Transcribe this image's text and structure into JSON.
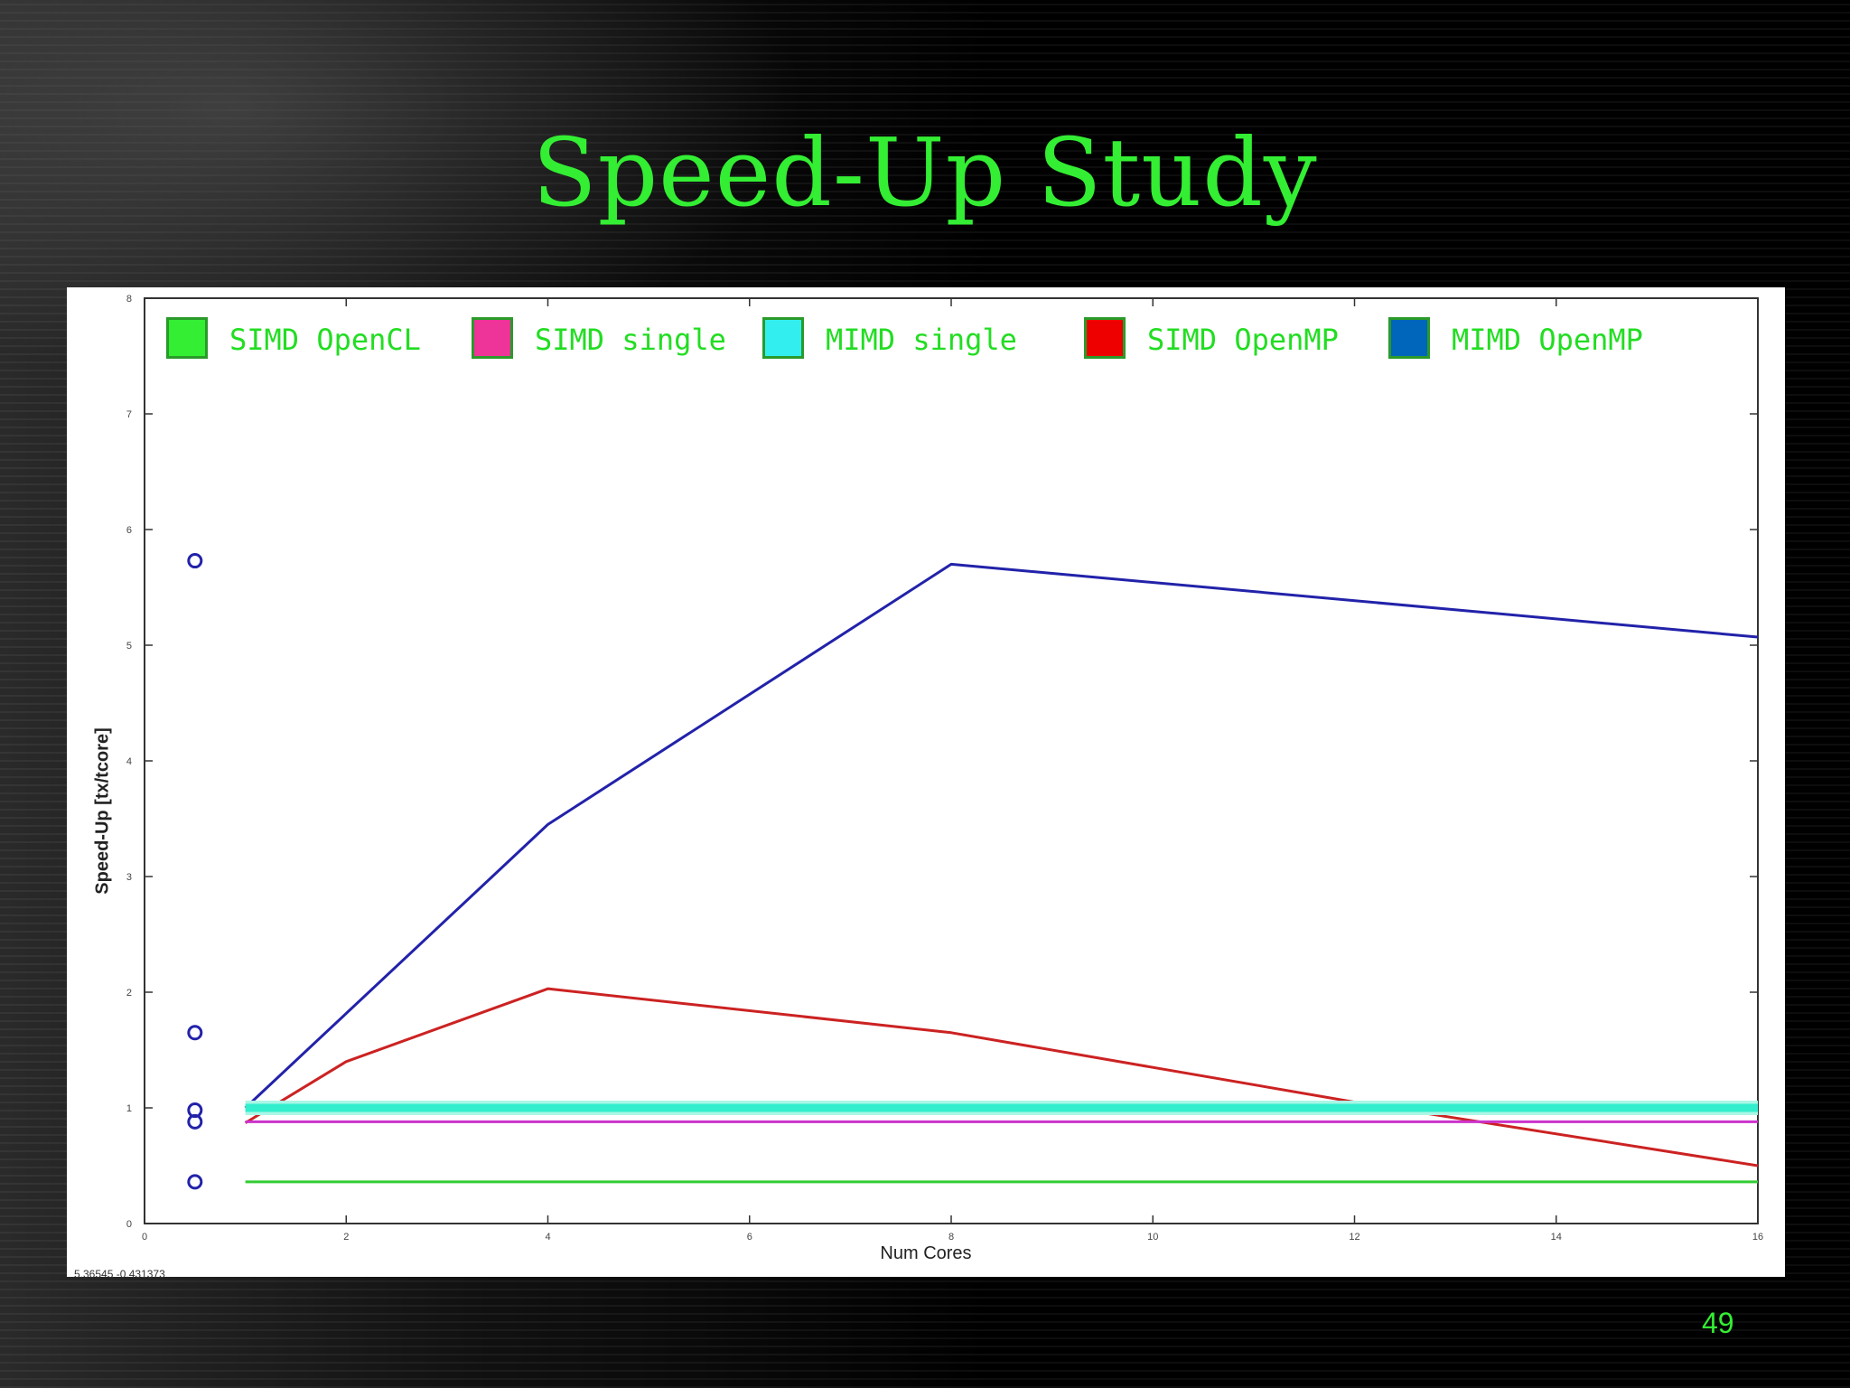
{
  "slide": {
    "title": "Speed-Up Study",
    "page_number": "49"
  },
  "status_readout": "5.36545  -0.431373",
  "colors": {
    "title": "#33ee33",
    "background": "#000000",
    "plot_background": "#ffffff"
  },
  "legend": [
    {
      "label": "SIMD OpenCL",
      "color": "#33ee33"
    },
    {
      "label": "SIMD single",
      "color": "#ee3399"
    },
    {
      "label": "MIMD single",
      "color": "#33eeee"
    },
    {
      "label": "SIMD OpenMP",
      "color": "#ee0000"
    },
    {
      "label": "MIMD OpenMP",
      "color": "#0066bb"
    }
  ],
  "chart_data": {
    "type": "line",
    "xlabel": "Num Cores",
    "ylabel": "Speed-Up [tx/tcore]",
    "xlim": [
      0,
      16
    ],
    "ylim": [
      0,
      8
    ],
    "xticks": [
      0,
      2,
      4,
      6,
      8,
      10,
      12,
      14,
      16
    ],
    "yticks": [
      0,
      1,
      2,
      3,
      4,
      5,
      6,
      7,
      8
    ],
    "grid": false,
    "legend_position": "top",
    "series": [
      {
        "name": "MIMD OpenMP",
        "color": "#2222aa",
        "x": [
          1,
          4,
          8,
          16
        ],
        "y": [
          1.0,
          3.45,
          5.7,
          5.07
        ]
      },
      {
        "name": "SIMD OpenMP",
        "color": "#cc2222",
        "x": [
          1,
          2,
          4,
          8,
          12,
          16
        ],
        "y": [
          0.87,
          1.4,
          2.03,
          1.65,
          1.05,
          0.5
        ]
      },
      {
        "name": "MIMD single",
        "color": "#33eecc",
        "x": [
          1,
          16
        ],
        "y": [
          1.0,
          1.0
        ]
      },
      {
        "name": "SIMD single",
        "color": "#cc33cc",
        "x": [
          1,
          16
        ],
        "y": [
          0.88,
          0.88
        ]
      },
      {
        "name": "SIMD OpenCL",
        "color": "#33cc33",
        "x": [
          1,
          16
        ],
        "y": [
          0.36,
          0.36
        ]
      }
    ],
    "markers": {
      "color": "#2222aa",
      "x": [
        0.5,
        0.5,
        0.5,
        0.5,
        0.5
      ],
      "y": [
        5.73,
        1.65,
        0.98,
        0.88,
        0.36
      ]
    }
  }
}
